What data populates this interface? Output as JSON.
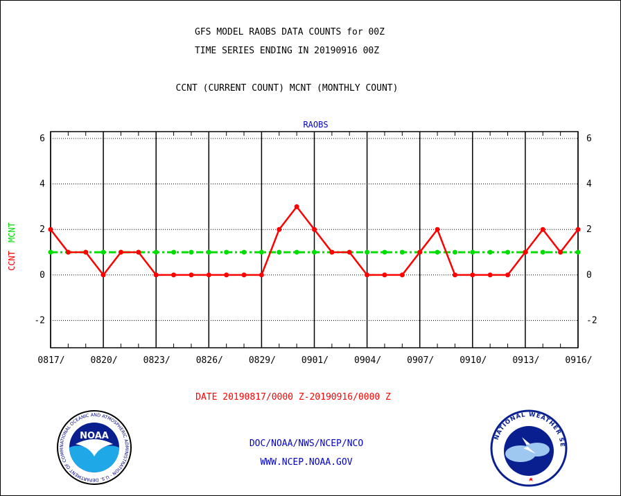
{
  "header": {
    "title_line1": "GFS MODEL RAOBS DATA COUNTS for 00Z",
    "title_line2": "TIME SERIES ENDING IN 20190916 00Z",
    "subtitle": "CCNT (CURRENT COUNT) MCNT (MONTHLY COUNT)"
  },
  "chart_data": {
    "type": "line",
    "title": "RAOBS",
    "ylabel_ccnt": "CCNT",
    "ylabel_mcnt": "MCNT",
    "ylim": [
      -3.2,
      6.3
    ],
    "yticks": [
      6,
      4,
      2,
      0,
      -2
    ],
    "ytick_labels": [
      "6",
      "4",
      "2",
      "0",
      "-2"
    ],
    "x_tick_labels": [
      "0817/",
      "0820/",
      "0823/",
      "0826/",
      "0829/",
      "0901/",
      "0904/",
      "0907/",
      "0910/",
      "0913/",
      "0916/"
    ],
    "x": [
      "0817",
      "0818",
      "0819",
      "0820",
      "0821",
      "0822",
      "0823",
      "0824",
      "0825",
      "0826",
      "0827",
      "0828",
      "0829",
      "0830",
      "0831",
      "0901",
      "0902",
      "0903",
      "0904",
      "0905",
      "0906",
      "0907",
      "0908",
      "0909",
      "0910",
      "0911",
      "0912",
      "0913",
      "0914",
      "0915",
      "0916"
    ],
    "grid": true,
    "series": [
      {
        "name": "CCNT",
        "color": "#ff0000",
        "style": "solid",
        "values": [
          2,
          1,
          1,
          0,
          1,
          1,
          0,
          0,
          0,
          0,
          0,
          0,
          0,
          2,
          3,
          2,
          1,
          1,
          0,
          0,
          0,
          1,
          2,
          0,
          0,
          0,
          0,
          1,
          2,
          1,
          2
        ]
      },
      {
        "name": "MCNT",
        "color": "#00dd00",
        "style": "dash-dot",
        "values": [
          1,
          1,
          1,
          1,
          1,
          1,
          1,
          1,
          1,
          1,
          1,
          1,
          1,
          1,
          1,
          1,
          1,
          1,
          1,
          1,
          1,
          1,
          1,
          1,
          1,
          1,
          1,
          1,
          1,
          1,
          1
        ]
      }
    ],
    "date_range": "DATE 20190817/0000 Z-20190916/0000 Z"
  },
  "footer": {
    "line1": "DOC/NOAA/NWS/NCEP/NCO",
    "line2": "WWW.NCEP.NOAA.GOV",
    "noaa_logo_text": "NOAA",
    "noaa_ring_text": "NATIONAL OCEANIC AND ATMOSPHERIC ADMINISTRATION · U.S. DEPARTMENT OF COMMERCE",
    "nws_ring_text": "NATIONAL WEATHER SERVICE"
  },
  "colors": {
    "ccnt": "#ff0000",
    "mcnt": "#00dd00",
    "blue_text": "#0000cc",
    "red_text": "#ff0000",
    "grid": "#000000"
  }
}
